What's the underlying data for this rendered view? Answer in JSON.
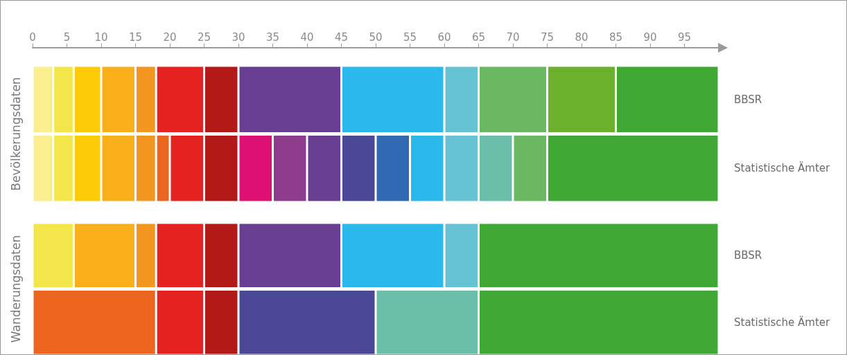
{
  "chart_data": [
    {
      "type": "bar",
      "orientation": "horizontal",
      "stacked": true,
      "ylabel": "Bevölkerungsdaten",
      "categories": [
        "BBSR",
        "Statistische Ämter"
      ],
      "xlim": [
        0,
        100
      ],
      "xticks": [
        0,
        5,
        10,
        15,
        20,
        25,
        30,
        35,
        40,
        45,
        50,
        55,
        60,
        65,
        70,
        75,
        80,
        85,
        90,
        95
      ],
      "series": [
        {
          "values": [
            3,
            3
          ],
          "colors": [
            "#fbee8f",
            "#fbee8f"
          ]
        },
        {
          "values": [
            3,
            3
          ],
          "colors": [
            "#f3e64a",
            "#f3e64a"
          ]
        },
        {
          "values": [
            4,
            4
          ],
          "colors": [
            "#fccb05",
            "#fccb05"
          ]
        },
        {
          "values": [
            5,
            5
          ],
          "colors": [
            "#f9b01b",
            "#f9b01b"
          ]
        },
        {
          "values": [
            3,
            3
          ],
          "colors": [
            "#f29620",
            "#f29620"
          ]
        },
        {
          "values": [
            7,
            2
          ],
          "colors": [
            "#e42320",
            "#ec6620"
          ]
        },
        {
          "values": [
            5,
            5
          ],
          "colors": [
            "#b31917",
            "#e42320"
          ]
        },
        {
          "values": [
            15,
            5
          ],
          "colors": [
            "#673e92",
            "#b31917"
          ]
        },
        {
          "values": [
            15,
            5
          ],
          "colors": [
            "#2bb9ec",
            "#df1074"
          ]
        },
        {
          "values": [
            5,
            5
          ],
          "colors": [
            "#66c3d4",
            "#8c3b8d"
          ]
        },
        {
          "values": [
            10,
            5
          ],
          "colors": [
            "#6ab862",
            "#673e92"
          ]
        },
        {
          "values": [
            10,
            5
          ],
          "colors": [
            "#6cb12c",
            "#4a4797"
          ]
        },
        {
          "values": [
            15,
            5
          ],
          "colors": [
            "#3fa934",
            "#3069b2"
          ]
        },
        {
          "values": [
            null,
            5
          ],
          "colors": [
            null,
            "#2bb9ec"
          ]
        },
        {
          "values": [
            null,
            5
          ],
          "colors": [
            null,
            "#66c3d4"
          ]
        },
        {
          "values": [
            null,
            5
          ],
          "colors": [
            null,
            "#6bbfa8"
          ]
        },
        {
          "values": [
            null,
            5
          ],
          "colors": [
            null,
            "#6ab862"
          ]
        },
        {
          "values": [
            null,
            25
          ],
          "colors": [
            null,
            "#3fa934"
          ]
        }
      ]
    },
    {
      "type": "bar",
      "orientation": "horizontal",
      "stacked": true,
      "ylabel": "Wanderungsdaten",
      "categories": [
        "BBSR",
        "Statistische Ämter"
      ],
      "xlim": [
        0,
        100
      ],
      "tick_labels": "y",
      "series": [
        {
          "values": [
            6,
            18
          ],
          "colors": [
            "#f3e64a",
            "#ec6620"
          ]
        },
        {
          "values": [
            9,
            7
          ],
          "colors": [
            "#f9b01b",
            "#e42320"
          ]
        },
        {
          "values": [
            3,
            5
          ],
          "colors": [
            "#f29620",
            "#b31917"
          ]
        },
        {
          "values": [
            7,
            20
          ],
          "colors": [
            "#e42320",
            "#4a4797"
          ]
        },
        {
          "values": [
            5,
            15
          ],
          "colors": [
            "#b31917",
            "#6bbfa8"
          ]
        },
        {
          "values": [
            15,
            35
          ],
          "colors": [
            "#673e92",
            "#3fa934"
          ]
        },
        {
          "values": [
            15,
            null
          ],
          "colors": [
            "#2bb9ec",
            null
          ]
        },
        {
          "values": [
            5,
            null
          ],
          "colors": [
            "#66c3d4",
            null
          ]
        },
        {
          "values": [
            35,
            null
          ],
          "colors": [
            "#3fa934",
            null
          ]
        }
      ]
    }
  ]
}
